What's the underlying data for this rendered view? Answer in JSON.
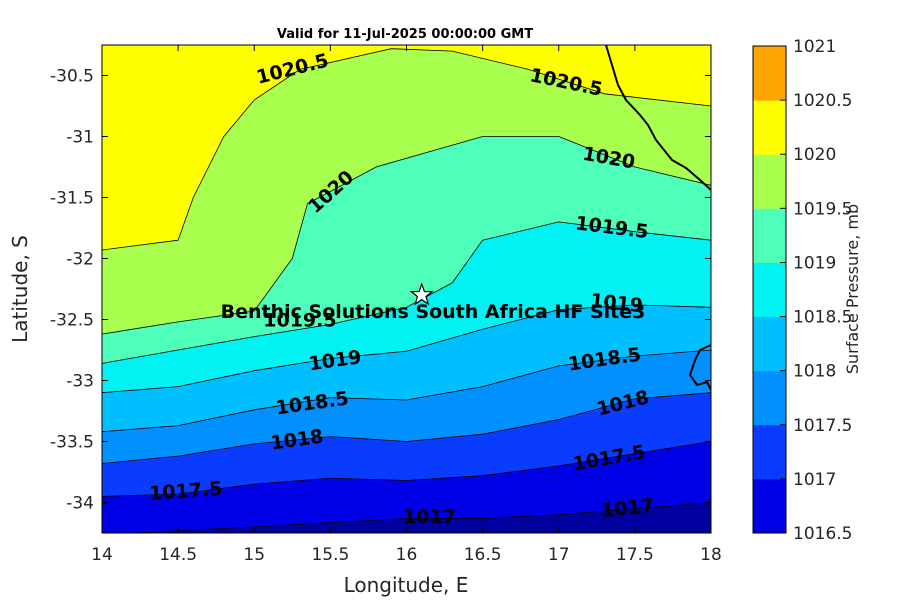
{
  "chart_data": {
    "type": "contour",
    "title": "Valid for 11-Jul-2025 00:00:00 GMT",
    "xlabel": "Longitude, E",
    "ylabel": "Latitude, S",
    "xlim": [
      14,
      18
    ],
    "ylim": [
      -34.25,
      -30.25
    ],
    "x_ticks": [
      14,
      14.5,
      15,
      15.5,
      16,
      16.5,
      17,
      17.5,
      18
    ],
    "x_tick_labels": [
      "14",
      "14.5",
      "15",
      "15.5",
      "16",
      "16.5",
      "17",
      "17.5",
      "18"
    ],
    "y_ticks": [
      -30.5,
      -31,
      -31.5,
      -32,
      -32.5,
      -33,
      -33.5,
      -34
    ],
    "y_tick_labels": [
      "-30.5",
      "-31",
      "-31.5",
      "-32",
      "-32.5",
      "-33",
      "-33.5",
      "-34"
    ],
    "colorbar": {
      "label": "Surface Pressure, mb",
      "range": [
        1016.5,
        1021
      ],
      "tick_labels": [
        "1021",
        "1020.5",
        "1020",
        "1019.5",
        "1019",
        "1018.5",
        "1018",
        "1017.5",
        "1017",
        "1016.5"
      ],
      "colors": [
        "#00009f",
        "#0000e6",
        "#0a3cff",
        "#0090ff",
        "#00bfff",
        "#00f2f2",
        "#4dffb8",
        "#a8ff4d",
        "#ffff00",
        "#ffa500",
        "#ff5a00"
      ]
    },
    "contour_levels": [
      {
        "level": 1017,
        "label": "1017",
        "points": [
          [
            14.2,
            -34.25
          ],
          [
            15.0,
            -34.2
          ],
          [
            16.0,
            -34.13
          ],
          [
            16.5,
            -34.13
          ],
          [
            17.0,
            -34.1
          ],
          [
            17.5,
            -34.05
          ],
          [
            18.0,
            -34.0
          ]
        ]
      },
      {
        "level": 1017.5,
        "label": "1017.5",
        "points": [
          [
            14.0,
            -33.95
          ],
          [
            14.5,
            -33.93
          ],
          [
            15.0,
            -33.85
          ],
          [
            15.5,
            -33.8
          ],
          [
            16.0,
            -33.82
          ],
          [
            16.5,
            -33.78
          ],
          [
            17.0,
            -33.7
          ],
          [
            17.5,
            -33.6
          ],
          [
            18.0,
            -33.5
          ]
        ]
      },
      {
        "level": 1018,
        "label": "1018",
        "points": [
          [
            14.0,
            -33.68
          ],
          [
            14.5,
            -33.62
          ],
          [
            15.0,
            -33.52
          ],
          [
            15.5,
            -33.46
          ],
          [
            16.0,
            -33.5
          ],
          [
            16.5,
            -33.44
          ],
          [
            17.0,
            -33.32
          ],
          [
            17.5,
            -33.15
          ],
          [
            18.0,
            -33.1
          ]
        ]
      },
      {
        "level": 1018.5,
        "label": "1018.5",
        "points": [
          [
            14.0,
            -33.42
          ],
          [
            14.5,
            -33.37
          ],
          [
            15.0,
            -33.24
          ],
          [
            15.5,
            -33.14
          ],
          [
            16.0,
            -33.16
          ],
          [
            16.5,
            -33.05
          ],
          [
            17.0,
            -32.88
          ],
          [
            17.5,
            -32.8
          ],
          [
            18.0,
            -32.75
          ]
        ]
      },
      {
        "level": 1019,
        "label": "1019",
        "points": [
          [
            14.0,
            -33.1
          ],
          [
            14.5,
            -33.05
          ],
          [
            15.0,
            -32.92
          ],
          [
            15.5,
            -32.82
          ],
          [
            16.0,
            -32.76
          ],
          [
            16.5,
            -32.58
          ],
          [
            17.0,
            -32.42
          ],
          [
            17.5,
            -32.38
          ],
          [
            18.0,
            -32.4
          ]
        ]
      },
      {
        "level": 1019.5,
        "label": "1019.5",
        "points": [
          [
            14.0,
            -32.86
          ],
          [
            14.5,
            -32.75
          ],
          [
            15.0,
            -32.64
          ],
          [
            15.5,
            -32.54
          ],
          [
            16.0,
            -32.4
          ],
          [
            16.3,
            -32.2
          ],
          [
            16.5,
            -31.85
          ],
          [
            17.0,
            -31.7
          ],
          [
            17.5,
            -31.78
          ],
          [
            18.0,
            -31.85
          ]
        ]
      },
      {
        "level": 1020,
        "label": "1020",
        "points": [
          [
            14.0,
            -32.62
          ],
          [
            14.5,
            -32.52
          ],
          [
            15.0,
            -32.43
          ],
          [
            15.25,
            -32.0
          ],
          [
            15.35,
            -31.55
          ],
          [
            15.8,
            -31.25
          ],
          [
            16.5,
            -31.0
          ],
          [
            17.0,
            -31.0
          ],
          [
            17.5,
            -31.25
          ],
          [
            18.0,
            -31.4
          ]
        ]
      },
      {
        "level": 1020.5,
        "label": "1020.5",
        "points": [
          [
            14.0,
            -31.93
          ],
          [
            14.5,
            -31.85
          ],
          [
            14.6,
            -31.5
          ],
          [
            14.8,
            -31.0
          ],
          [
            15.0,
            -30.7
          ],
          [
            15.3,
            -30.45
          ],
          [
            15.9,
            -30.28
          ],
          [
            16.3,
            -30.3
          ],
          [
            16.8,
            -30.45
          ],
          [
            17.3,
            -30.65
          ],
          [
            18.0,
            -30.75
          ]
        ]
      }
    ],
    "site_marker": {
      "label": "Benthic Solutions South Africa HF Site3",
      "lon": 16.1,
      "lat": -32.3
    }
  }
}
